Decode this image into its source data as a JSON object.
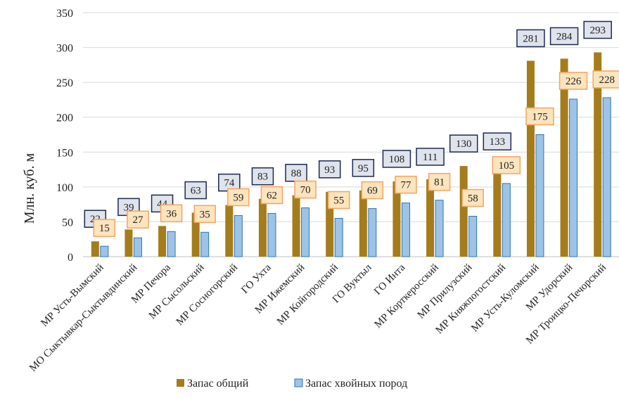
{
  "chart_data": {
    "type": "bar",
    "ylabel": "Млн. куб. м",
    "ylim": [
      0,
      350
    ],
    "yticks": [
      0,
      50,
      100,
      150,
      200,
      250,
      300,
      350
    ],
    "grid": true,
    "legend_position": "bottom",
    "categories": [
      "МР Усть-Вымский",
      "МО Сыктывкар-Сыктывдинский",
      "МР Печора",
      "МР Сысольский",
      "МР Сосногорский",
      "ГО Ухта",
      "МР Ижемский",
      "МР Койгородский",
      "ГО Вуктыл",
      "ГО Инта",
      "МР Корткеросский",
      "МР Прилузский",
      "МР Княжпогостский",
      "МР Усть-Куломский",
      "МР Удорский",
      "МР Троицко-Печорский"
    ],
    "series": [
      {
        "name": "Запас общий",
        "color": "#a57c1b",
        "label_bg": "#dfe3ec",
        "label_border": "#1f2a4d",
        "values": [
          22,
          39,
          44,
          63,
          74,
          83,
          88,
          93,
          95,
          108,
          111,
          130,
          133,
          281,
          284,
          293
        ]
      },
      {
        "name": "Запас хвойных пород",
        "color": "#9dc3e6",
        "bar_border": "#2e75b6",
        "label_bg": "#fce4bd",
        "label_border": "#f4a460",
        "values": [
          15,
          27,
          36,
          35,
          59,
          62,
          70,
          55,
          69,
          77,
          81,
          58,
          105,
          175,
          226,
          228
        ]
      }
    ]
  }
}
